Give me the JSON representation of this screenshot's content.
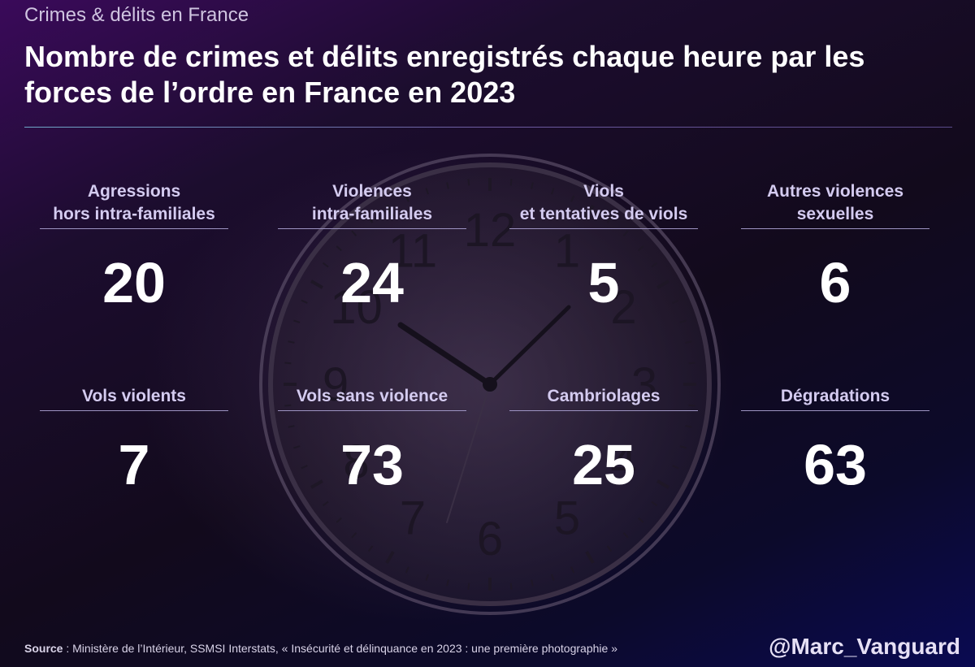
{
  "header": {
    "kicker": "Crimes & délits en France",
    "title": "Nombre de crimes et délits enregistrés chaque heure par les forces de l’ordre en France en 2023"
  },
  "stats": [
    {
      "label_line1": "Agressions",
      "label_line2": "hors intra-familiales",
      "value": "20"
    },
    {
      "label_line1": "Violences",
      "label_line2": "intra-familiales",
      "value": "24"
    },
    {
      "label_line1": "Viols",
      "label_line2": "et tentatives de viols",
      "value": "5"
    },
    {
      "label_line1": "Autres violences",
      "label_line2": "sexuelles",
      "value": "6"
    },
    {
      "label_line1": "Vols violents",
      "label_line2": "",
      "value": "7"
    },
    {
      "label_line1": "Vols sans violence",
      "label_line2": "",
      "value": "73"
    },
    {
      "label_line1": "Cambriolages",
      "label_line2": "",
      "value": "25"
    },
    {
      "label_line1": "Dégradations",
      "label_line2": "",
      "value": "63"
    }
  ],
  "clock_numerals": [
    "12",
    "1",
    "2",
    "3",
    "4",
    "5",
    "6",
    "7",
    "8",
    "9",
    "10",
    "11"
  ],
  "footer": {
    "source_label": "Source",
    "source_text": " : Ministère de l’Intérieur, SSMSI Interstats, « Insécurité et délinquance en 2023 : une première photographie »",
    "handle": "@Marc_Vanguard"
  },
  "colors": {
    "label": "#d4cbf0",
    "value": "#ffffff",
    "background_top": "#3a0a5a",
    "background_bottom": "#0a0a52"
  }
}
